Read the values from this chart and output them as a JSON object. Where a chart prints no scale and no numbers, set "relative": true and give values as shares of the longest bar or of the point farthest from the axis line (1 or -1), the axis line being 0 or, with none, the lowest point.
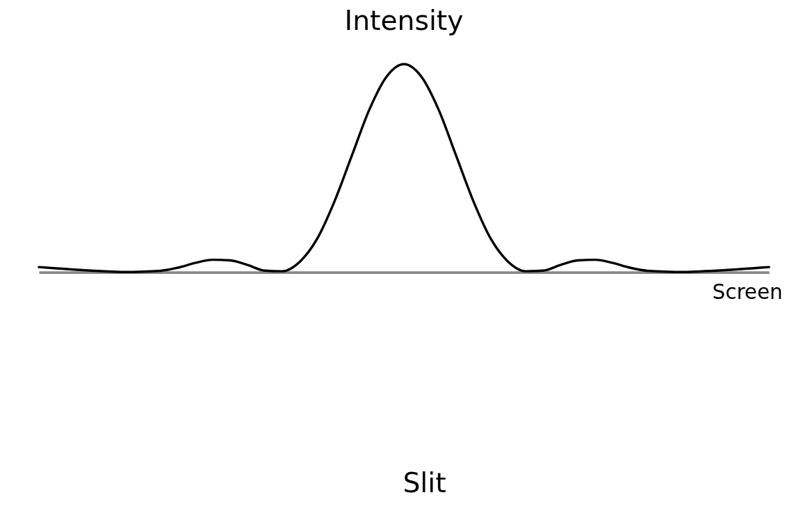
{
  "chart_data": {
    "type": "line",
    "title": "Intensity",
    "relative": true,
    "categories": [
      null,
      null,
      null,
      null,
      null,
      null,
      null,
      null,
      null,
      null,
      null,
      null,
      null,
      null,
      null,
      null,
      null,
      null,
      null,
      null,
      null,
      null,
      null,
      null,
      null,
      null,
      null,
      null,
      null,
      null,
      null,
      null,
      null,
      null,
      null,
      null,
      null,
      null,
      null,
      null,
      null,
      null,
      null
    ],
    "series": [
      {
        "color": "#000000",
        "values": [
          0.025,
          0.019,
          0.013,
          0.008,
          0.004,
          0.001,
          0.003,
          0.007,
          0.022,
          0.045,
          0.06,
          0.057,
          0.035,
          0.008,
          0.005,
          0.05,
          0.16,
          0.34,
          0.56,
          0.78,
          0.94,
          1.0,
          0.94,
          0.78,
          0.56,
          0.34,
          0.16,
          0.05,
          0.005,
          0.008,
          0.035,
          0.057,
          0.06,
          0.045,
          0.022,
          0.007,
          0.003,
          0.001,
          0.004,
          0.008,
          0.013,
          0.019,
          0.025
        ]
      }
    ],
    "annotations": [
      "Screen",
      "Slit"
    ],
    "grid": false,
    "tick_labels": false,
    "marker": "none",
    "line_style": "solid"
  }
}
